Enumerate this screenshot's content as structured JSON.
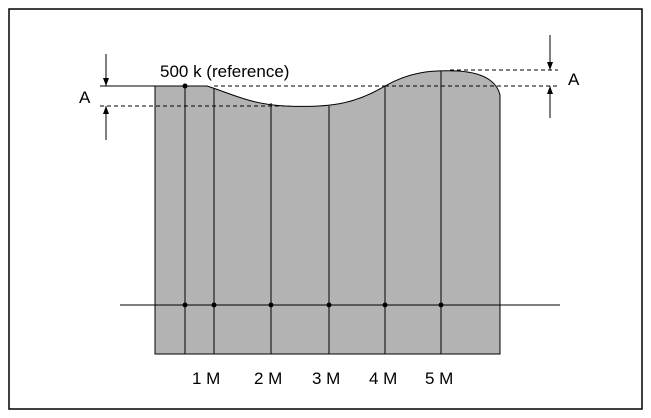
{
  "diagram": {
    "reference_label": "500 k (reference)",
    "deviation_label_left": "A",
    "deviation_label_right": "A",
    "frequency_labels": [
      "1 M",
      "2 M",
      "3 M",
      "4 M",
      "5 M"
    ],
    "colors": {
      "frame": "#000000",
      "fill": "#b3b3b3",
      "line": "#000000",
      "dashed": "#000000",
      "background": "#ffffff"
    }
  }
}
